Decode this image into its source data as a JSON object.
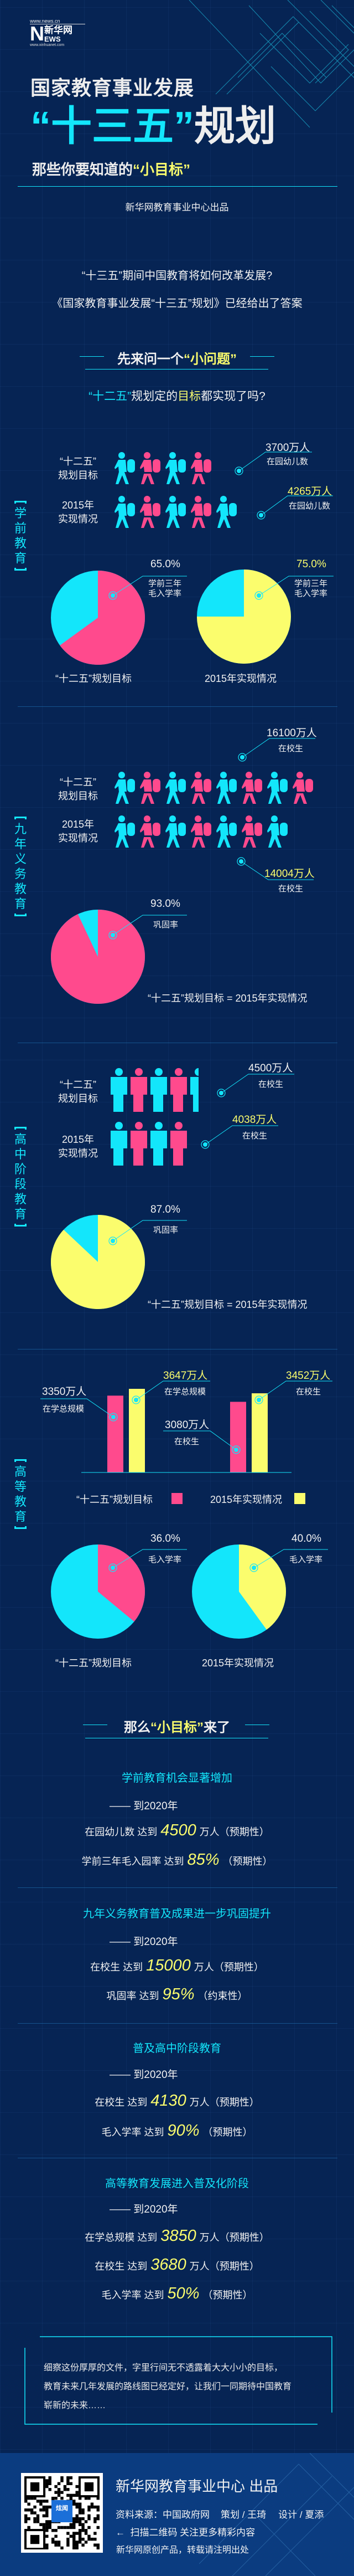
{
  "colors": {
    "background": "#062454",
    "cyan": "#13e6fb",
    "pink": "#ff4a8d",
    "yellow": "#fbfd6d",
    "footer": "#0b3c80"
  },
  "logo": {
    "url_top": "www.news.cn",
    "name": "新华网",
    "news": "NEWS",
    "url_bottom": "www.xinhuanet.com"
  },
  "header": {
    "title_line1": "国家教育事业发展",
    "title_highlight": "“十三五”",
    "title_suffix": "规划",
    "subtitle_prefix": "那些你要知道的",
    "subtitle_highlight": "“小目标”",
    "credit": "新华网教育事业中心出品"
  },
  "intro": {
    "q1": "“十三五”期间中国教育将如何改革发展?",
    "q2": "《国家教育事业发展“十三五”规划》已经给出了答案"
  },
  "section1": {
    "heading_prefix": "先来问一个",
    "heading_highlight": "“小问题”",
    "question_a": "“十二五”",
    "question_b": "规划定的",
    "question_c": "目标",
    "question_d": "都实现了吗?"
  },
  "labels": {
    "plan1": "“十二五”",
    "plan2": "规划目标",
    "real1": "2015年",
    "real2": "实现情况",
    "plan_full": "“十二五”规划目标",
    "real_full": "2015年实现情况",
    "equals": "“十二五”规划目标 = 2015年实现情况"
  },
  "preschool": {
    "side_label": "学前教育",
    "rows": [
      {
        "icons": 4,
        "value": "3700万人",
        "desc": "在园幼儿数"
      },
      {
        "icons": 5,
        "value": "4265万人",
        "desc": "在园幼儿数"
      }
    ],
    "pies": [
      {
        "percent": 65.0,
        "label": "65.0%",
        "desc1": "学前三年",
        "desc2": "毛入学率"
      },
      {
        "percent": 75.0,
        "label": "75.0%",
        "desc1": "学前三年",
        "desc2": "毛入学率"
      }
    ]
  },
  "compulsory": {
    "side_label": "九年义务教育",
    "rows": [
      {
        "icons": 8,
        "value": "16100万人",
        "desc": "在校生"
      },
      {
        "icons": 7,
        "value": "14004万人",
        "desc": "在校生"
      }
    ],
    "pie": {
      "percent": 93.0,
      "label": "93.0%",
      "desc": "巩固率"
    }
  },
  "highschool": {
    "side_label": "高中阶段教育",
    "rows": [
      {
        "icons": 4.5,
        "value": "4500万人",
        "desc": "在校生"
      },
      {
        "icons": 4,
        "value": "4038万人",
        "desc": "在校生"
      }
    ],
    "pie": {
      "percent": 87.0,
      "label": "87.0%",
      "desc": "巩固率"
    }
  },
  "higher": {
    "side_label": "高等教育",
    "chart_data": {
      "type": "bar",
      "categories": [
        "在学总规模",
        "在校生"
      ],
      "series": [
        {
          "name": "“十二五”规划目标",
          "values": [
            3350,
            3080
          ]
        },
        {
          "name": "2015年实现情况",
          "values": [
            3647,
            3452
          ]
        }
      ],
      "value_labels": [
        [
          "3350万人",
          "3647万人"
        ],
        [
          "3080万人",
          "3452万人"
        ]
      ],
      "unit": "万人",
      "legend": "bottom"
    },
    "pies": [
      {
        "percent": 36.0,
        "label": "36.0%",
        "desc": "毛入学率"
      },
      {
        "percent": 40.0,
        "label": "40.0%",
        "desc": "毛入学率"
      }
    ]
  },
  "section2": {
    "heading_prefix": "那么",
    "heading_highlight": "“小目标”",
    "heading_suffix": "来了",
    "by_year": "—— 到2020年",
    "groups": [
      {
        "title": "学前教育机会显著增加",
        "items": [
          {
            "label": "在园幼儿数 达到",
            "value": "4500",
            "unit": "万人",
            "note": "（预期性）"
          },
          {
            "label": "学前三年毛入园率 达到",
            "value": "85%",
            "unit": "",
            "note": "（预期性）"
          }
        ]
      },
      {
        "title": "九年义务教育普及成果进一步巩固提升",
        "items": [
          {
            "label": "在校生 达到",
            "value": "15000",
            "unit": "万人",
            "note": "（预期性）"
          },
          {
            "label": "巩固率 达到",
            "value": "95%",
            "unit": "",
            "note": "（约束性）"
          }
        ]
      },
      {
        "title": "普及高中阶段教育",
        "items": [
          {
            "label": "在校生 达到",
            "value": "4130",
            "unit": "万人",
            "note": "（预期性）"
          },
          {
            "label": "毛入学率 达到",
            "value": "90%",
            "unit": "",
            "note": "（预期性）"
          }
        ]
      },
      {
        "title": "高等教育发展进入普及化阶段",
        "items": [
          {
            "label": "在学总规模 达到",
            "value": "3850",
            "unit": "万人",
            "note": "（预期性）"
          },
          {
            "label": "在校生 达到",
            "value": "3680",
            "unit": "万人",
            "note": "（预期性）"
          },
          {
            "label": "毛入学率 达到",
            "value": "50%",
            "unit": "",
            "note": "（预期性）"
          }
        ]
      }
    ]
  },
  "closing": {
    "line1": "细察这份厚厚的文件，字里行间无不透露着大大小小的目标，",
    "line2": "教育未来几年发展的路线图已经定好，让我们一同期待中国教育",
    "line3": "崭新的未来……"
  },
  "footer": {
    "producer": "新华网教育事业中心 出品",
    "source": "资料来源：中国政府网",
    "planner": "策划 / 王琦",
    "designer": "设计 / 夏添",
    "scan": "扫描二维码 关注更多精彩内容",
    "copyright": "新华网原创产品，转载请注明出处",
    "qr_badge": "炫闻"
  }
}
